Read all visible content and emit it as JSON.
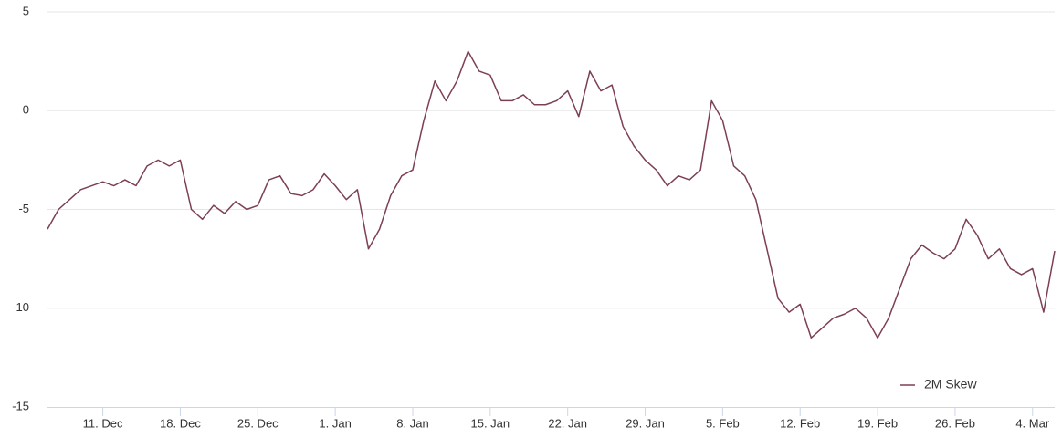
{
  "chart_data": {
    "type": "line",
    "categories": [
      null,
      null,
      null,
      null,
      null,
      "11. Dec",
      null,
      null,
      null,
      null,
      null,
      null,
      "18. Dec",
      null,
      null,
      null,
      null,
      null,
      null,
      "25. Dec",
      null,
      null,
      null,
      null,
      null,
      null,
      "1. Jan",
      null,
      null,
      null,
      null,
      null,
      null,
      "8. Jan",
      null,
      null,
      null,
      null,
      null,
      null,
      "15. Jan",
      null,
      null,
      null,
      null,
      null,
      null,
      "22. Jan",
      null,
      null,
      null,
      null,
      null,
      null,
      "29. Jan",
      null,
      null,
      null,
      null,
      null,
      null,
      "5. Feb",
      null,
      null,
      null,
      null,
      null,
      null,
      "12. Feb",
      null,
      null,
      null,
      null,
      null,
      null,
      "19. Feb",
      null,
      null,
      null,
      null,
      null,
      null,
      "26. Feb",
      null,
      null,
      null,
      null,
      null,
      null,
      "4. Mar",
      null,
      null
    ],
    "series": [
      {
        "name": "2M Skew",
        "color": "#7d3f55",
        "values": [
          -6.0,
          -5.0,
          -4.5,
          -4.0,
          -3.8,
          -3.6,
          -3.8,
          -3.5,
          -3.8,
          -2.8,
          -2.5,
          -2.8,
          -2.5,
          -5.0,
          -5.5,
          -4.8,
          -5.2,
          -4.6,
          -5.0,
          -4.8,
          -3.5,
          -3.3,
          -4.2,
          -4.3,
          -4.0,
          -3.2,
          -3.8,
          -4.5,
          -4.0,
          -7.0,
          -6.0,
          -4.3,
          -3.3,
          -3.0,
          -0.5,
          1.5,
          0.5,
          1.5,
          3.0,
          2.0,
          1.8,
          0.5,
          0.5,
          0.8,
          0.3,
          0.3,
          0.5,
          1.0,
          -0.3,
          2.0,
          1.0,
          1.3,
          -0.8,
          -1.8,
          -2.5,
          -3.0,
          -3.8,
          -3.3,
          -3.5,
          -3.0,
          0.5,
          -0.5,
          -2.8,
          -3.3,
          -4.5,
          -7.0,
          -9.5,
          -10.2,
          -9.8,
          -11.5,
          -11.0,
          -10.5,
          -10.3,
          -10.0,
          -10.5,
          -11.5,
          -10.5,
          -9.0,
          -7.5,
          -6.8,
          -7.2,
          -7.5,
          -7.0,
          -5.5,
          -6.3,
          -7.5,
          -7.0,
          -8.0,
          -8.3,
          -8.0,
          -10.2,
          -7.1
        ]
      }
    ],
    "ylim": [
      -15,
      5
    ],
    "yticks": [
      -15,
      -10,
      -5,
      0,
      5
    ],
    "grid": true,
    "legend": "bottom-right"
  }
}
